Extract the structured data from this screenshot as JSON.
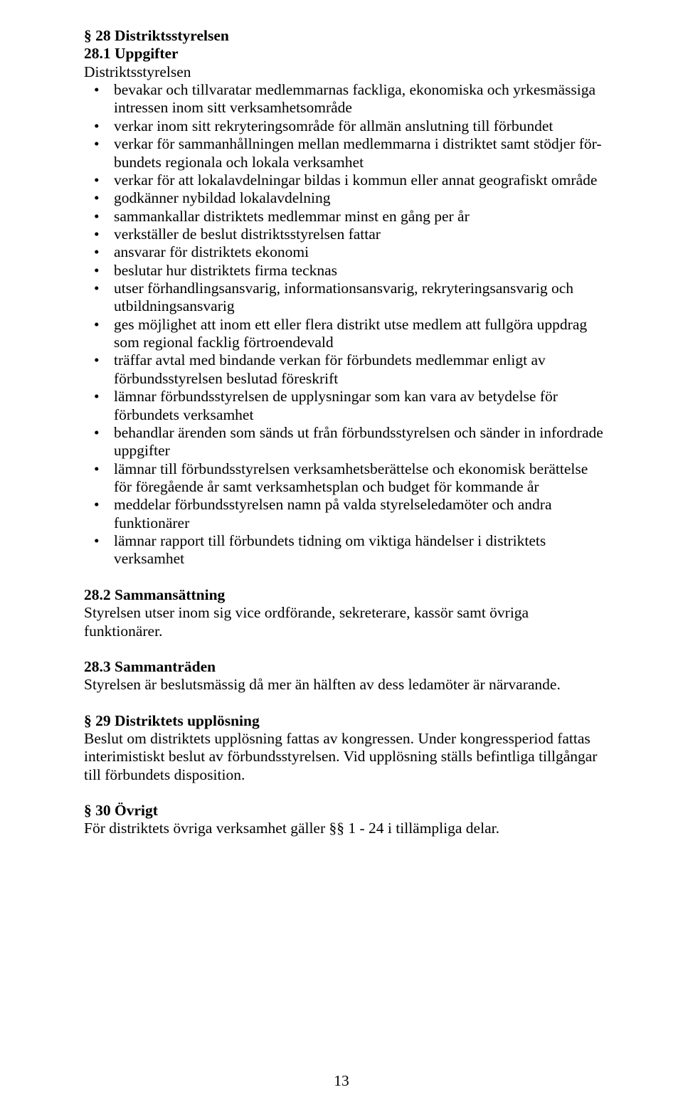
{
  "s28": {
    "title": "§ 28 Distriktsstyrelsen",
    "sub1_title": "28.1 Uppgifter",
    "intro": "Distriktsstyrelsen",
    "bullets": [
      "bevakar och tillvaratar medlemmarnas fackliga, ekonomiska och yrkesmässiga intressen inom sitt verksamhetsområde",
      "verkar inom sitt rekryteringsområde för allmän anslutning till förbundet",
      "verkar för sammanhållningen mellan medlemmarna i distriktet samt stödjer för- bundets regionala och lokala verksamhet",
      "verkar för att lokalavdelningar bildas i kommun eller annat geografiskt område",
      "godkänner nybildad lokalavdelning",
      "sammankallar distriktets medlemmar minst en gång per år",
      "verkställer de beslut distriktsstyrelsen fattar",
      "ansvarar för distriktets ekonomi",
      "beslutar hur distriktets firma tecknas",
      "utser förhandlingsansvarig, informationsansvarig, rekryteringsansvarig och utbildningsansvarig",
      "ges möjlighet att inom ett eller flera distrikt utse medlem att fullgöra uppdrag som regional facklig förtroendevald",
      "träffar avtal med bindande verkan för förbundets medlemmar enligt av förbundsstyrelsen beslutad föreskrift",
      "lämnar förbundsstyrelsen de upplysningar som kan vara av betydelse för förbundets verksamhet",
      "behandlar ärenden som sänds ut från förbundsstyrelsen och sänder in infordrade uppgifter",
      "lämnar till förbundsstyrelsen verksamhetsberättelse och ekonomisk berättelse för föregående år samt verksamhetsplan och budget för kommande år",
      "meddelar förbundsstyrelsen namn på valda styrelseledamöter och andra funktionärer",
      "lämnar rapport till förbundets tidning om viktiga händelser i distriktets verksamhet"
    ],
    "sub2_title": "28.2 Sammansättning",
    "sub2_body": "Styrelsen utser inom sig vice ordförande, sekreterare, kassör samt övriga funktionärer.",
    "sub3_title": "28.3 Sammanträden",
    "sub3_body": "Styrelsen är beslutsmässig då mer än hälften av dess ledamöter är närvarande."
  },
  "s29": {
    "title": "§ 29 Distriktets upplösning",
    "body": "Beslut om distriktets upplösning fattas av kongressen. Under kongressperiod fattas interimistiskt beslut av förbundsstyrelsen. Vid upplösning ställs befintliga tillgångar till förbundets disposition."
  },
  "s30": {
    "title": "§ 30 Övrigt",
    "body": "För distriktets övriga verksamhet gäller §§ 1 - 24 i tillämpliga delar."
  },
  "page_number": "13"
}
